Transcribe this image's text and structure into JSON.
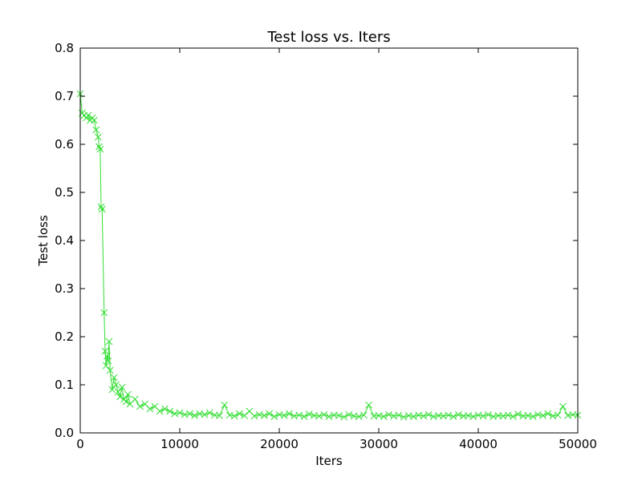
{
  "chart_data": {
    "type": "line",
    "title": "Test loss  vs. Iters",
    "x_label": "Iters",
    "y_label": "Test loss",
    "x": [
      0,
      200,
      400,
      600,
      800,
      1000,
      1200,
      1400,
      1600,
      1800,
      1900,
      2000,
      2100,
      2200,
      2400,
      2500,
      2600,
      2700,
      2800,
      2900,
      3000,
      3200,
      3400,
      3600,
      3800,
      4000,
      4200,
      4400,
      4600,
      4800,
      5000,
      5500,
      6000,
      6500,
      7000,
      7500,
      8000,
      8500,
      9000,
      9500,
      10000,
      10500,
      11000,
      11500,
      12000,
      12500,
      13000,
      13500,
      14000,
      14500,
      15000,
      15500,
      16000,
      16500,
      17000,
      17500,
      18000,
      18500,
      19000,
      19500,
      20000,
      20500,
      21000,
      21500,
      22000,
      22500,
      23000,
      23500,
      24000,
      24500,
      25000,
      25500,
      26000,
      26500,
      27000,
      27500,
      28000,
      28500,
      29000,
      29500,
      30000,
      30500,
      31000,
      31500,
      32000,
      32500,
      33000,
      33500,
      34000,
      34500,
      35000,
      35500,
      36000,
      36500,
      37000,
      37500,
      38000,
      38500,
      39000,
      39500,
      40000,
      40500,
      41000,
      41500,
      42000,
      42500,
      43000,
      43500,
      44000,
      44500,
      45000,
      45500,
      46000,
      46500,
      47000,
      47500,
      48000,
      48500,
      49000,
      49500,
      50000
    ],
    "series": [
      {
        "name": "Test loss",
        "color": "#33dd33",
        "values": [
          0.705,
          0.665,
          0.66,
          0.655,
          0.66,
          0.65,
          0.655,
          0.65,
          0.63,
          0.615,
          0.595,
          0.59,
          0.47,
          0.465,
          0.25,
          0.17,
          0.14,
          0.16,
          0.15,
          0.19,
          0.13,
          0.09,
          0.115,
          0.1,
          0.085,
          0.075,
          0.095,
          0.07,
          0.065,
          0.08,
          0.06,
          0.07,
          0.055,
          0.06,
          0.05,
          0.055,
          0.045,
          0.05,
          0.045,
          0.04,
          0.042,
          0.038,
          0.04,
          0.036,
          0.04,
          0.038,
          0.042,
          0.037,
          0.036,
          0.058,
          0.037,
          0.035,
          0.04,
          0.036,
          0.045,
          0.035,
          0.038,
          0.036,
          0.04,
          0.034,
          0.038,
          0.036,
          0.04,
          0.035,
          0.037,
          0.034,
          0.039,
          0.036,
          0.035,
          0.038,
          0.034,
          0.037,
          0.036,
          0.033,
          0.038,
          0.035,
          0.034,
          0.037,
          0.058,
          0.035,
          0.036,
          0.034,
          0.038,
          0.035,
          0.037,
          0.033,
          0.036,
          0.034,
          0.037,
          0.035,
          0.038,
          0.034,
          0.036,
          0.035,
          0.037,
          0.034,
          0.038,
          0.035,
          0.036,
          0.034,
          0.037,
          0.035,
          0.038,
          0.034,
          0.036,
          0.035,
          0.037,
          0.034,
          0.039,
          0.035,
          0.036,
          0.034,
          0.038,
          0.036,
          0.04,
          0.035,
          0.037,
          0.055,
          0.036,
          0.038,
          0.037
        ]
      }
    ],
    "xlim": [
      0,
      50000
    ],
    "ylim": [
      0,
      0.8
    ],
    "xticks": [
      0,
      10000,
      20000,
      30000,
      40000,
      50000
    ],
    "yticks": [
      {
        "value": 0,
        "label": "0.0"
      },
      0.1,
      0.2,
      0.3,
      0.4,
      0.5,
      0.6,
      0.7,
      0.8
    ],
    "grid": false
  }
}
